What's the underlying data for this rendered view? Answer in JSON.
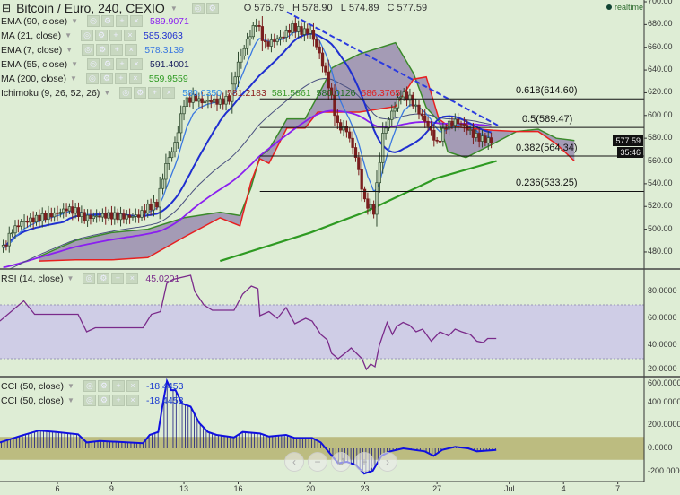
{
  "header": {
    "collapse_icon": "minus-square-icon",
    "symbol": "Bitcoin / Euro, 240, CEXIO",
    "ohlc": {
      "o_label": "O",
      "o": "576.79",
      "h_label": "H",
      "h": "578.90",
      "l_label": "L",
      "l": "574.89",
      "c_label": "C",
      "c": "577.59"
    }
  },
  "realtime": "realtime",
  "indicators": [
    {
      "name": "EMA (90, close)",
      "value": "589.9071",
      "color": "#8a1ff0"
    },
    {
      "name": "MA (21, close)",
      "value": "585.3063",
      "color": "#1f2fd0"
    },
    {
      "name": "EMA (7, close)",
      "value": "578.3139",
      "color": "#3a78e0"
    },
    {
      "name": "EMA (55, close)",
      "value": "591.4001",
      "color": "#1c2260"
    },
    {
      "name": "MA (200, close)",
      "value": "559.9559",
      "color": "#2e9a22"
    },
    {
      "name": "Ichimoku (9, 26, 52, 26)",
      "values": [
        "580.0350",
        "581.2183",
        "581.5861",
        "580.0126",
        "586.3765"
      ],
      "colors": [
        "#2d8ae6",
        "#8b1a1a",
        "#3a9a2a",
        "#1e6b1e",
        "#e02020"
      ]
    }
  ],
  "rsi_legend": {
    "name": "RSI (14, close)",
    "value": "45.0201",
    "color": "#7a2a8a"
  },
  "cci_legend": [
    {
      "name": "CCI (50, close)",
      "value": "-18.4453"
    },
    {
      "name": "CCI (50, close)",
      "value": "-18.4453"
    }
  ],
  "price_tags": {
    "last": "577.59",
    "timer": "35:46"
  },
  "nav_buttons": [
    "‹",
    "−",
    "↺",
    "+",
    "›"
  ],
  "chart_data": [
    {
      "type": "candlestick",
      "pane": "price",
      "ylim": [
        470,
        702
      ],
      "yticks": [
        "700.00",
        "680.00",
        "660.00",
        "640.00",
        "620.00",
        "600.00",
        "580.00",
        "560.00",
        "540.00",
        "520.00",
        "500.00",
        "480.00"
      ],
      "xticks": [
        "6",
        "9",
        "13",
        "16",
        "20",
        "23",
        "27",
        "Jul",
        "4",
        "7"
      ],
      "xtick_days": [
        6,
        9,
        13,
        16,
        20,
        23,
        27,
        31,
        34,
        37
      ],
      "x_days": [
        3,
        3.5,
        4,
        4.5,
        5,
        5.5,
        6,
        6.5,
        7,
        7.5,
        8,
        8.5,
        9,
        9.5,
        10,
        10.5,
        11,
        11.5,
        12,
        12.5,
        13,
        13.5,
        14,
        14.5,
        15,
        15.5,
        16,
        16.5,
        17,
        17.5,
        18,
        18.5,
        19,
        19.5,
        20,
        20.5,
        21,
        21.5,
        22,
        22.5,
        23,
        23.5,
        24,
        24.5,
        25,
        25.5,
        26,
        26.5,
        27,
        27.5,
        28,
        28.5,
        29,
        29.5,
        30
      ],
      "close": [
        483,
        499,
        506,
        508,
        510,
        512,
        514,
        518,
        516,
        510,
        511,
        512,
        512,
        511,
        511,
        512,
        519,
        522,
        557,
        575,
        611,
        616,
        612,
        613,
        612,
        615,
        646,
        666,
        682,
        662,
        666,
        670,
        678,
        674,
        674,
        654,
        627,
        591,
        587,
        564,
        524,
        516,
        583,
        603,
        619,
        615,
        603,
        591,
        575,
        591,
        595,
        591,
        583,
        579,
        577.59
      ],
      "ma200": {
        "x_days": [
          15,
          20,
          23,
          27,
          30.3
        ],
        "values": [
          472,
          497,
          515,
          545,
          560
        ]
      },
      "ichimoku_cloud": {
        "x_days": [
          5,
          7,
          9,
          11,
          13,
          15,
          16.1,
          16.7,
          17.2,
          17.7,
          18.7,
          19.7,
          20.4,
          21.2,
          22.7,
          24.7,
          25.7,
          26.4,
          27.1,
          27.6,
          28.6,
          30.1,
          31.4,
          32.6,
          33.6,
          34.6
        ],
        "span_a": [
          476,
          490,
          497,
          500,
          510,
          515,
          512,
          536,
          564,
          570,
          597,
          597,
          617,
          642,
          654,
          664,
          637,
          607,
          595,
          568,
          563,
          575,
          586,
          588,
          580,
          578
        ],
        "span_b": [
          472,
          473,
          473,
          475,
          493,
          510,
          503,
          541,
          562,
          558,
          589,
          589,
          603,
          603,
          603,
          608,
          632,
          634,
          597,
          591,
          589,
          587,
          586,
          586,
          575,
          560
        ]
      },
      "trendline": {
        "from": [
          18.7,
          691
        ],
        "to": [
          30.4,
          591
        ],
        "style": "dashed"
      },
      "fibonacci": [
        {
          "label": "0.618(614.60)",
          "price": 614.6
        },
        {
          "label": "0.5(589.47)",
          "price": 589.47
        },
        {
          "label": "0.382(564.34)",
          "price": 564.34
        },
        {
          "label": "0.236(533.25)",
          "price": 533.25
        }
      ],
      "fib_start_day": 17.2
    },
    {
      "type": "line",
      "pane": "rsi",
      "ylim": [
        16,
        96
      ],
      "band": [
        30,
        70
      ],
      "yticks": [
        "80.0000",
        "60.0000",
        "40.0000",
        "20.0000"
      ],
      "x_days": [
        2.82,
        4.14,
        4.74,
        7.14,
        7.62,
        8.1,
        10.74,
        11.2,
        11.7,
        12.05,
        12.4,
        13.37,
        13.6,
        14.1,
        14.57,
        15.77,
        16.25,
        16.73,
        17.09,
        17.2,
        17.7,
        18.17,
        18.65,
        19.13,
        19.73,
        20.09,
        20.57,
        20.93,
        21.17,
        21.53,
        22.0,
        22.25,
        22.85,
        23.09,
        23.33,
        23.57,
        23.81,
        24.24,
        24.53,
        24.77,
        25.12,
        25.48,
        25.84,
        26.2,
        26.68,
        27.16,
        27.64,
        28.0,
        28.36,
        28.84,
        29.2,
        29.56,
        29.8,
        30.28
      ],
      "values": [
        58,
        73,
        63,
        63,
        50,
        53,
        53,
        63,
        65,
        86,
        89,
        92,
        80,
        70,
        66,
        66,
        78,
        84,
        82,
        62,
        65,
        60,
        68,
        56,
        60,
        58,
        48,
        44,
        34,
        30,
        35,
        38,
        30,
        22,
        26,
        24,
        40,
        57,
        48,
        54,
        57,
        55,
        50,
        52,
        43,
        50,
        47,
        52,
        50,
        48,
        43,
        42,
        45,
        45
      ]
    },
    {
      "type": "line+histogram",
      "pane": "cci",
      "ylim": [
        -260,
        620
      ],
      "band": [
        -100,
        100
      ],
      "yticks": [
        "600.0000",
        "400.0000",
        "200.0000",
        "0.0000",
        "-200.0000"
      ],
      "x_days": [
        2.82,
        4.02,
        4.98,
        5.94,
        7.14,
        7.62,
        8.34,
        10.74,
        11.1,
        11.58,
        11.82,
        12.06,
        12.3,
        12.53,
        12.89,
        13.37,
        13.85,
        14.33,
        14.81,
        15.77,
        16.25,
        17.21,
        17.69,
        18.65,
        19.13,
        20.09,
        20.57,
        21.05,
        21.53,
        22.01,
        22.49,
        22.97,
        23.45,
        23.93,
        24.41,
        25.13,
        26.33,
        26.81,
        27.29,
        28.01,
        28.73,
        29.2,
        30.28
      ],
      "values": [
        52,
        112,
        156,
        143,
        123,
        52,
        65,
        45,
        117,
        143,
        378,
        587,
        508,
        508,
        391,
        365,
        221,
        143,
        117,
        96,
        143,
        130,
        104,
        117,
        91,
        91,
        52,
        -39,
        -130,
        -117,
        -143,
        -221,
        -195,
        -65,
        -26,
        0,
        -26,
        -65,
        -13,
        13,
        0,
        -26,
        -13
      ]
    }
  ],
  "colors": {
    "background": "#deedd5",
    "candle_up": "#2f4a2f",
    "candle_down": "#7a1e1e",
    "cloud": "#9a8caf",
    "rsi_band": "#cfcde6",
    "cci_band": "#bcbc80",
    "rsi_line": "#7a2a8a",
    "cci_line": "#1010e0"
  }
}
